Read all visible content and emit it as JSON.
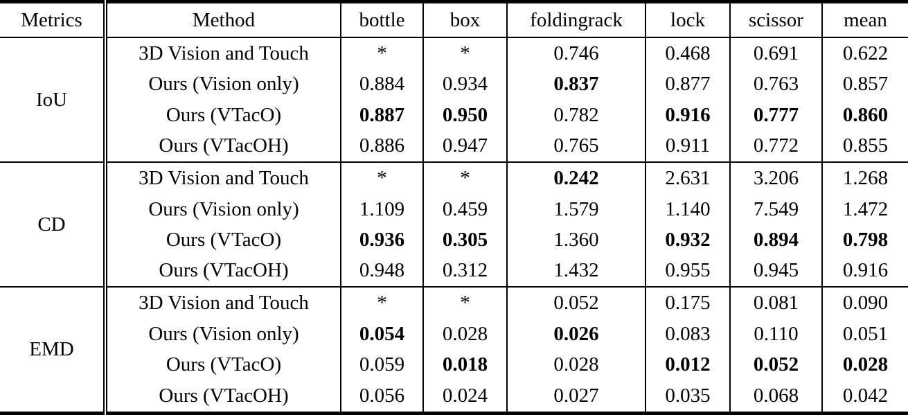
{
  "chart_data": {
    "type": "table",
    "columns": [
      "Metrics",
      "Method",
      "bottle",
      "box",
      "foldingrack",
      "lock",
      "scissor",
      "mean"
    ],
    "sections": [
      {
        "metric": "IoU",
        "rows": [
          {
            "method": "3D Vision and Touch",
            "values": [
              "*",
              "*",
              "0.746",
              "0.468",
              "0.691",
              "0.622"
            ],
            "bold": []
          },
          {
            "method": "Ours (Vision only)",
            "values": [
              "0.884",
              "0.934",
              "0.837",
              "0.877",
              "0.763",
              "0.857"
            ],
            "bold": [
              2
            ]
          },
          {
            "method": "Ours (VTacO)",
            "values": [
              "0.887",
              "0.950",
              "0.782",
              "0.916",
              "0.777",
              "0.860"
            ],
            "bold": [
              0,
              1,
              3,
              4,
              5
            ]
          },
          {
            "method": "Ours (VTacOH)",
            "values": [
              "0.886",
              "0.947",
              "0.765",
              "0.911",
              "0.772",
              "0.855"
            ],
            "bold": []
          }
        ]
      },
      {
        "metric": "CD",
        "rows": [
          {
            "method": "3D Vision and Touch",
            "values": [
              "*",
              "*",
              "0.242",
              "2.631",
              "3.206",
              "1.268"
            ],
            "bold": [
              2
            ]
          },
          {
            "method": "Ours (Vision only)",
            "values": [
              "1.109",
              "0.459",
              "1.579",
              "1.140",
              "7.549",
              "1.472"
            ],
            "bold": []
          },
          {
            "method": "Ours (VTacO)",
            "values": [
              "0.936",
              "0.305",
              "1.360",
              "0.932",
              "0.894",
              "0.798"
            ],
            "bold": [
              0,
              1,
              3,
              4,
              5
            ]
          },
          {
            "method": "Ours (VTacOH)",
            "values": [
              "0.948",
              "0.312",
              "1.432",
              "0.955",
              "0.945",
              "0.916"
            ],
            "bold": []
          }
        ]
      },
      {
        "metric": "EMD",
        "rows": [
          {
            "method": "3D Vision and Touch",
            "values": [
              "*",
              "*",
              "0.052",
              "0.175",
              "0.081",
              "0.090"
            ],
            "bold": []
          },
          {
            "method": "Ours (Vision only)",
            "values": [
              "0.054",
              "0.028",
              "0.026",
              "0.083",
              "0.110",
              "0.051"
            ],
            "bold": [
              0,
              2
            ]
          },
          {
            "method": "Ours (VTacO)",
            "values": [
              "0.059",
              "0.018",
              "0.028",
              "0.012",
              "0.052",
              "0.028"
            ],
            "bold": [
              1,
              3,
              4,
              5
            ]
          },
          {
            "method": "Ours (VTacOH)",
            "values": [
              "0.056",
              "0.024",
              "0.027",
              "0.035",
              "0.068",
              "0.042"
            ],
            "bold": []
          }
        ]
      }
    ]
  }
}
